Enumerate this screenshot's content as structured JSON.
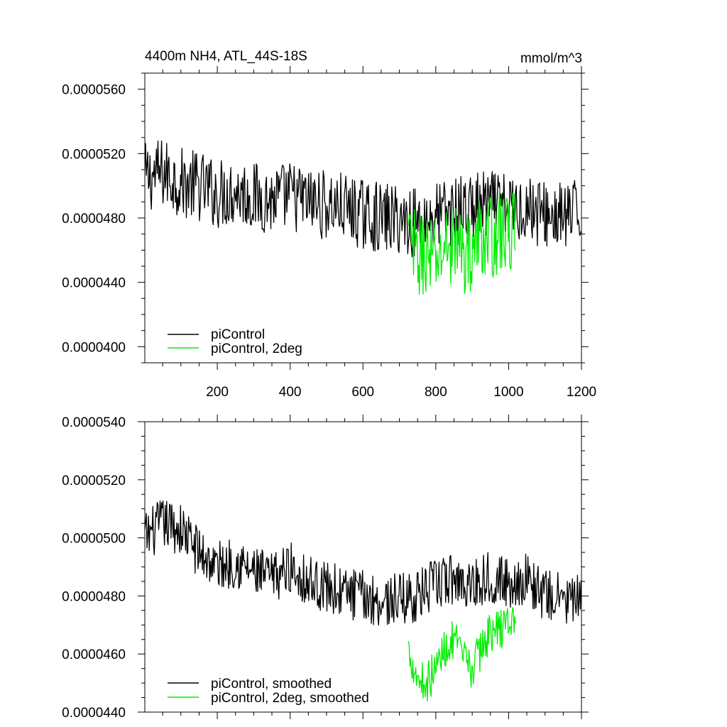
{
  "figure": {
    "title_left": "4400m NH4, ATL_44S-18S",
    "title_right": "mmol/m^3"
  },
  "chart_data": [
    {
      "type": "line",
      "title": "4400m NH4, ATL_44S-18S",
      "units": "mmol/m^3",
      "xlim": [
        1,
        1200
      ],
      "ylim": [
        3.9e-05,
        5.7e-05
      ],
      "x_ticks": [
        200,
        400,
        600,
        800,
        1000,
        1200
      ],
      "x_tick_labels": [
        "200",
        "400",
        "600",
        "800",
        "1000",
        "1200"
      ],
      "y_ticks": [
        4e-05,
        4.4e-05,
        4.8e-05,
        5.2e-05,
        5.6e-05
      ],
      "y_tick_labels": [
        "0.0000400",
        "0.0000440",
        "0.0000480",
        "0.0000520",
        "0.0000560"
      ],
      "legend_position": "bottom-left",
      "series": [
        {
          "name": "piControl",
          "color": "#000000",
          "x": [
            1,
            50,
            100,
            150,
            200,
            250,
            300,
            350,
            400,
            450,
            500,
            550,
            600,
            650,
            700,
            750,
            800,
            850,
            900,
            950,
            1000,
            1050,
            1100,
            1150,
            1200
          ],
          "y": [
            5.05e-05,
            5.08e-05,
            5.02e-05,
            5e-05,
            4.95e-05,
            4.97e-05,
            4.93e-05,
            4.91e-05,
            4.94e-05,
            4.9e-05,
            4.88e-05,
            4.86e-05,
            4.82e-05,
            4.8e-05,
            4.79e-05,
            4.77e-05,
            4.81e-05,
            4.84e-05,
            4.86e-05,
            4.88e-05,
            4.85e-05,
            4.87e-05,
            4.82e-05,
            4.8e-05,
            4.83e-05
          ],
          "amplitude": 2.2e-06
        },
        {
          "name": "piControl, 2deg",
          "color": "#00ee00",
          "x": [
            725,
            750,
            775,
            800,
            825,
            850,
            875,
            900,
            925,
            950,
            975,
            1000,
            1020
          ],
          "y": [
            4.68e-05,
            4.55e-05,
            4.58e-05,
            4.52e-05,
            4.62e-05,
            4.65e-05,
            4.58e-05,
            4.6e-05,
            4.7e-05,
            4.68e-05,
            4.72e-05,
            4.7e-05,
            4.75e-05
          ],
          "amplitude": 2.6e-06
        }
      ]
    },
    {
      "type": "line",
      "xlim": [
        1,
        1200
      ],
      "ylim": [
        4.4e-05,
        5.4e-05
      ],
      "y_ticks": [
        4.4e-05,
        4.6e-05,
        4.8e-05,
        5e-05,
        5.2e-05,
        5.4e-05
      ],
      "y_tick_labels": [
        "0.0000440",
        "0.0000460",
        "0.0000480",
        "0.0000500",
        "0.0000520",
        "0.0000540"
      ],
      "legend_position": "bottom-left",
      "series": [
        {
          "name": "piControl, smoothed",
          "color": "#000000",
          "x": [
            1,
            50,
            100,
            150,
            200,
            250,
            300,
            350,
            400,
            450,
            500,
            550,
            600,
            650,
            700,
            750,
            800,
            850,
            900,
            950,
            1000,
            1050,
            1100,
            1150,
            1200
          ],
          "y": [
            5e-05,
            5.05e-05,
            5.03e-05,
            4.95e-05,
            4.9e-05,
            4.92e-05,
            4.88e-05,
            4.86e-05,
            4.9e-05,
            4.85e-05,
            4.83e-05,
            4.81e-05,
            4.8e-05,
            4.78e-05,
            4.79e-05,
            4.8e-05,
            4.84e-05,
            4.86e-05,
            4.84e-05,
            4.87e-05,
            4.84e-05,
            4.86e-05,
            4.8e-05,
            4.79e-05,
            4.78e-05
          ],
          "amplitude": 9e-07
        },
        {
          "name": "piControl, 2deg, smoothed",
          "color": "#00ee00",
          "x": [
            725,
            750,
            775,
            800,
            825,
            850,
            875,
            900,
            925,
            950,
            975,
            1000,
            1020
          ],
          "y": [
            4.62e-05,
            4.52e-05,
            4.5e-05,
            4.55e-05,
            4.62e-05,
            4.65e-05,
            4.58e-05,
            4.55e-05,
            4.62e-05,
            4.68e-05,
            4.68e-05,
            4.72e-05,
            4.7e-05
          ],
          "amplitude": 7e-07
        }
      ]
    }
  ]
}
